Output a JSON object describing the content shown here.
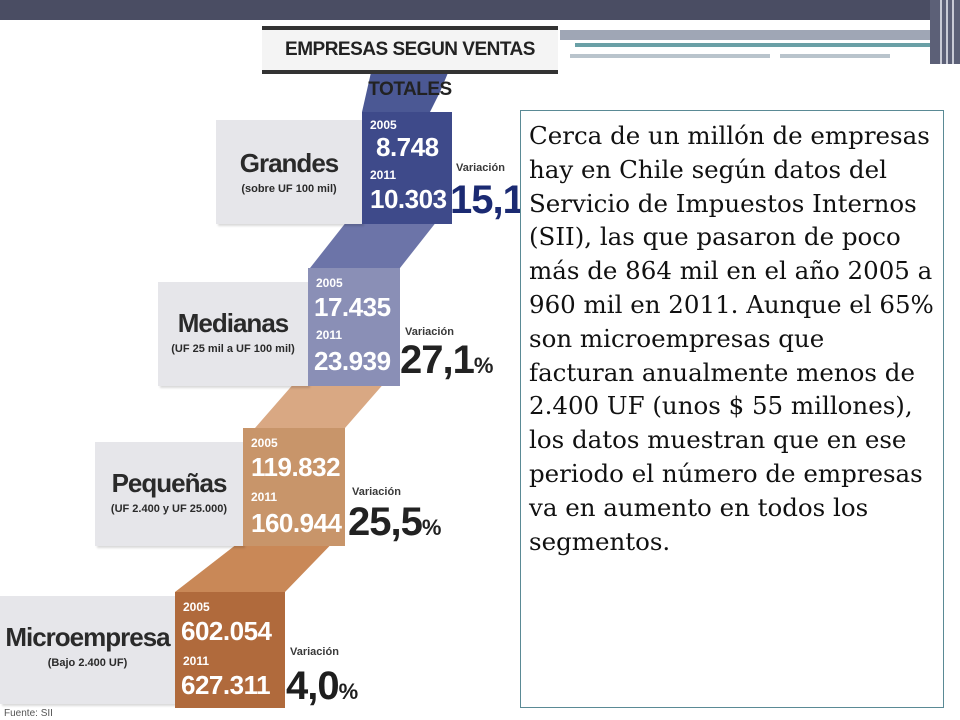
{
  "infographic": {
    "title": "EMPRESAS SEGUN VENTAS TOTALES",
    "year_a": "2005",
    "year_b": "2011",
    "variation_label": "Variación",
    "percent_sign": "%",
    "source": "Fuente: SII",
    "segments": [
      {
        "name": "Grandes",
        "range": "(sobre UF 100 mil)",
        "value_2005": "8.748",
        "value_2011": "10.303",
        "variation": "15,1"
      },
      {
        "name": "Medianas",
        "range": "(UF 25 mil a UF 100 mil)",
        "value_2005": "17.435",
        "value_2011": "23.939",
        "variation": "27,1"
      },
      {
        "name": "Pequeñas",
        "range": "(UF 2.400 y UF 25.000)",
        "value_2005": "119.832",
        "value_2011": "160.944",
        "variation": "25,5"
      },
      {
        "name": "Microempresa",
        "range": "(Bajo 2.400 UF)",
        "value_2005": "602.054",
        "value_2011": "627.311",
        "variation": "4,0"
      }
    ]
  },
  "colors": {
    "grandes": "#3e4a8a",
    "medianas": "#8a8fb6",
    "pequenas": "#c8956a",
    "micro": "#b06a3c",
    "var_grandes": "#1b2a72",
    "var_medianas": "#222222",
    "var_pequenas": "#222222",
    "var_micro": "#1e1e1e"
  },
  "body_text": "Cerca de un millón de empresas hay en Chile según datos del Servicio de Impuestos Internos (SII), las que pasaron de poco más de 864 mil en el año 2005 a 960 mil en 2011. Aunque el 65% son microempresas que facturan anualmente menos de 2.400 UF (unos $ 55 millones), los datos muestran que en ese periodo el número de empresas va en aumento en todos los segmentos."
}
